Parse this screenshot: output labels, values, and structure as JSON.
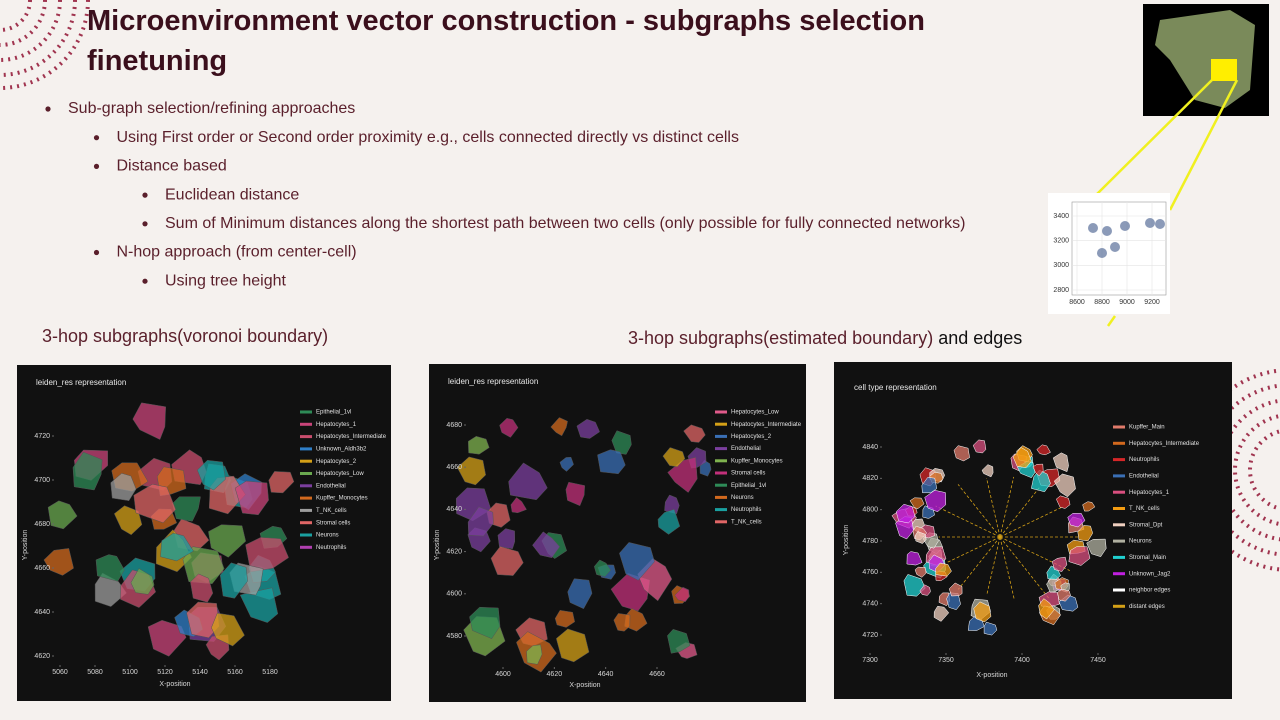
{
  "slide": {
    "title": [
      "Microenvironment vector construction - subgraphs selection",
      "finetuning"
    ],
    "bullets": [
      {
        "text": "Sub-graph selection/refining approaches",
        "children": [
          {
            "text": "Using First order or Second order proximity e.g., cells connected directly vs distinct cells",
            "children": []
          },
          {
            "text": "Distance based",
            "children": [
              {
                "text": "Euclidean distance"
              },
              {
                "text": "Sum of Minimum distances along the shortest path between two cells (only possible for fully connected networks)"
              }
            ]
          },
          {
            "text": "N-hop approach (from center-cell)",
            "children": [
              {
                "text": "Using tree height"
              }
            ]
          }
        ]
      }
    ],
    "caption_left": "3-hop subgraphs(voronoi boundary)",
    "caption_right": [
      "3-hop subgraphs(estimated boundary)",
      " and edges"
    ]
  },
  "thumbnail_plot": {
    "xticks": [
      8600,
      8800,
      9000,
      9200
    ],
    "yticks": [
      2800,
      3000,
      3200,
      3400
    ]
  },
  "figures": [
    {
      "title": "leiden_res representation",
      "x_label": "X-position",
      "y_label": "Y-position",
      "xticks": [
        5060,
        5080,
        5100,
        5120,
        5140,
        5160,
        5180
      ],
      "yticks": [
        4620,
        4640,
        4660,
        4680,
        4700,
        4720
      ],
      "legend": [
        {
          "name": "Epithelial_1vl",
          "color": "#2e8b57"
        },
        {
          "name": "Hepatocytes_1",
          "color": "#c9447a"
        },
        {
          "name": "Hepatocytes_Intermediate",
          "color": "#c94d6d"
        },
        {
          "name": "Unknown_Aldh3b2",
          "color": "#2f7fc8"
        },
        {
          "name": "Hepatocytes_2",
          "color": "#d4a017"
        },
        {
          "name": "Hepatocytes_Low",
          "color": "#6aa84f"
        },
        {
          "name": "Endothelial",
          "color": "#7b3f9e"
        },
        {
          "name": "Kupffer_Monocytes",
          "color": "#d2691e"
        },
        {
          "name": "T_NK_cells",
          "color": "#9e9e9e"
        },
        {
          "name": "Stromal cells",
          "color": "#e06666"
        },
        {
          "name": "Neurons",
          "color": "#1aa0a0"
        },
        {
          "name": "Neutrophils",
          "color": "#b03fb0"
        }
      ]
    },
    {
      "title": "leiden_res representation",
      "x_label": "X-position",
      "y_label": "Y-position",
      "xticks": [
        4600,
        4620,
        4640,
        4660
      ],
      "yticks": [
        4580,
        4600,
        4620,
        4640,
        4660,
        4680
      ],
      "legend": [
        {
          "name": "Hepatocytes_Low",
          "color": "#e05a8a"
        },
        {
          "name": "Hepatocytes_Intermediate",
          "color": "#d4a017"
        },
        {
          "name": "Hepatocytes_2",
          "color": "#3a6fb5"
        },
        {
          "name": "Endothelial",
          "color": "#7b3f9e"
        },
        {
          "name": "Kupffer_Monocytes",
          "color": "#7fb34f"
        },
        {
          "name": "Stromal cells",
          "color": "#c2307a"
        },
        {
          "name": "Epithelial_1vl",
          "color": "#2e8b57"
        },
        {
          "name": "Neurons",
          "color": "#d2691e"
        },
        {
          "name": "Neutrophils",
          "color": "#1aa0a0"
        },
        {
          "name": "T_NK_cells",
          "color": "#e06666"
        }
      ]
    },
    {
      "title": "cell type representation",
      "x_label": "X-position",
      "y_label": "Y-position",
      "xticks": [
        7300,
        7350,
        7400,
        7450
      ],
      "yticks": [
        4720,
        4740,
        4760,
        4780,
        4800,
        4820,
        4840
      ],
      "legend": [
        {
          "name": "Kupffer_Main",
          "color": "#e07a6a"
        },
        {
          "name": "Hepatocytes_Intermediate",
          "color": "#d2691e"
        },
        {
          "name": "Neutrophils",
          "color": "#d62728"
        },
        {
          "name": "Endothelial",
          "color": "#3a6fb5"
        },
        {
          "name": "Hepatocytes_1",
          "color": "#d94f7f"
        },
        {
          "name": "T_NK_cells",
          "color": "#f39c12"
        },
        {
          "name": "Stromal_Dpt",
          "color": "#f0d0c0"
        },
        {
          "name": "Neurons",
          "color": "#b0b0a0"
        },
        {
          "name": "Stromal_Main",
          "color": "#20d0d0"
        },
        {
          "name": "Unknown_Jag2",
          "color": "#c020e0"
        },
        {
          "name": "neighbor edges",
          "color": "#ffffff"
        },
        {
          "name": "distant edges",
          "color": "#d4a017"
        }
      ]
    }
  ]
}
